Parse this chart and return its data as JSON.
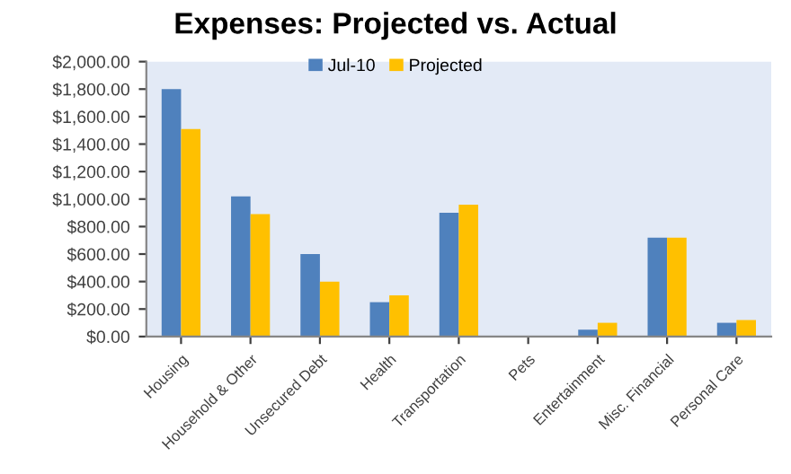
{
  "chart_data": {
    "type": "bar",
    "title": "Expenses: Projected vs. Actual",
    "categories": [
      "Housing",
      "Household & Other",
      "Unsecured Debt",
      "Health",
      "Transportation",
      "Pets",
      "Entertainment",
      "Misc. Financial",
      "Personal Care"
    ],
    "series": [
      {
        "name": "Jul-10",
        "color": "#4f81bd",
        "values": [
          1800,
          1020,
          600,
          250,
          900,
          0,
          50,
          720,
          100
        ]
      },
      {
        "name": "Projected",
        "color": "#ffc000",
        "values": [
          1510,
          890,
          400,
          300,
          960,
          0,
          100,
          720,
          120
        ]
      }
    ],
    "ylim": [
      0,
      2000
    ],
    "yticks": [
      {
        "value": 0,
        "label": "$0.00"
      },
      {
        "value": 200,
        "label": "$200.00"
      },
      {
        "value": 400,
        "label": "$400.00"
      },
      {
        "value": 600,
        "label": "$600.00"
      },
      {
        "value": 800,
        "label": "$800.00"
      },
      {
        "value": 1000,
        "label": "$1,000.00"
      },
      {
        "value": 1200,
        "label": "$1,200.00"
      },
      {
        "value": 1400,
        "label": "$1,400.00"
      },
      {
        "value": 1600,
        "label": "$1,600.00"
      },
      {
        "value": 1800,
        "label": "$1,800.00"
      },
      {
        "value": 2000,
        "label": "$2,000.00"
      }
    ],
    "grid": false,
    "legend": "top"
  }
}
